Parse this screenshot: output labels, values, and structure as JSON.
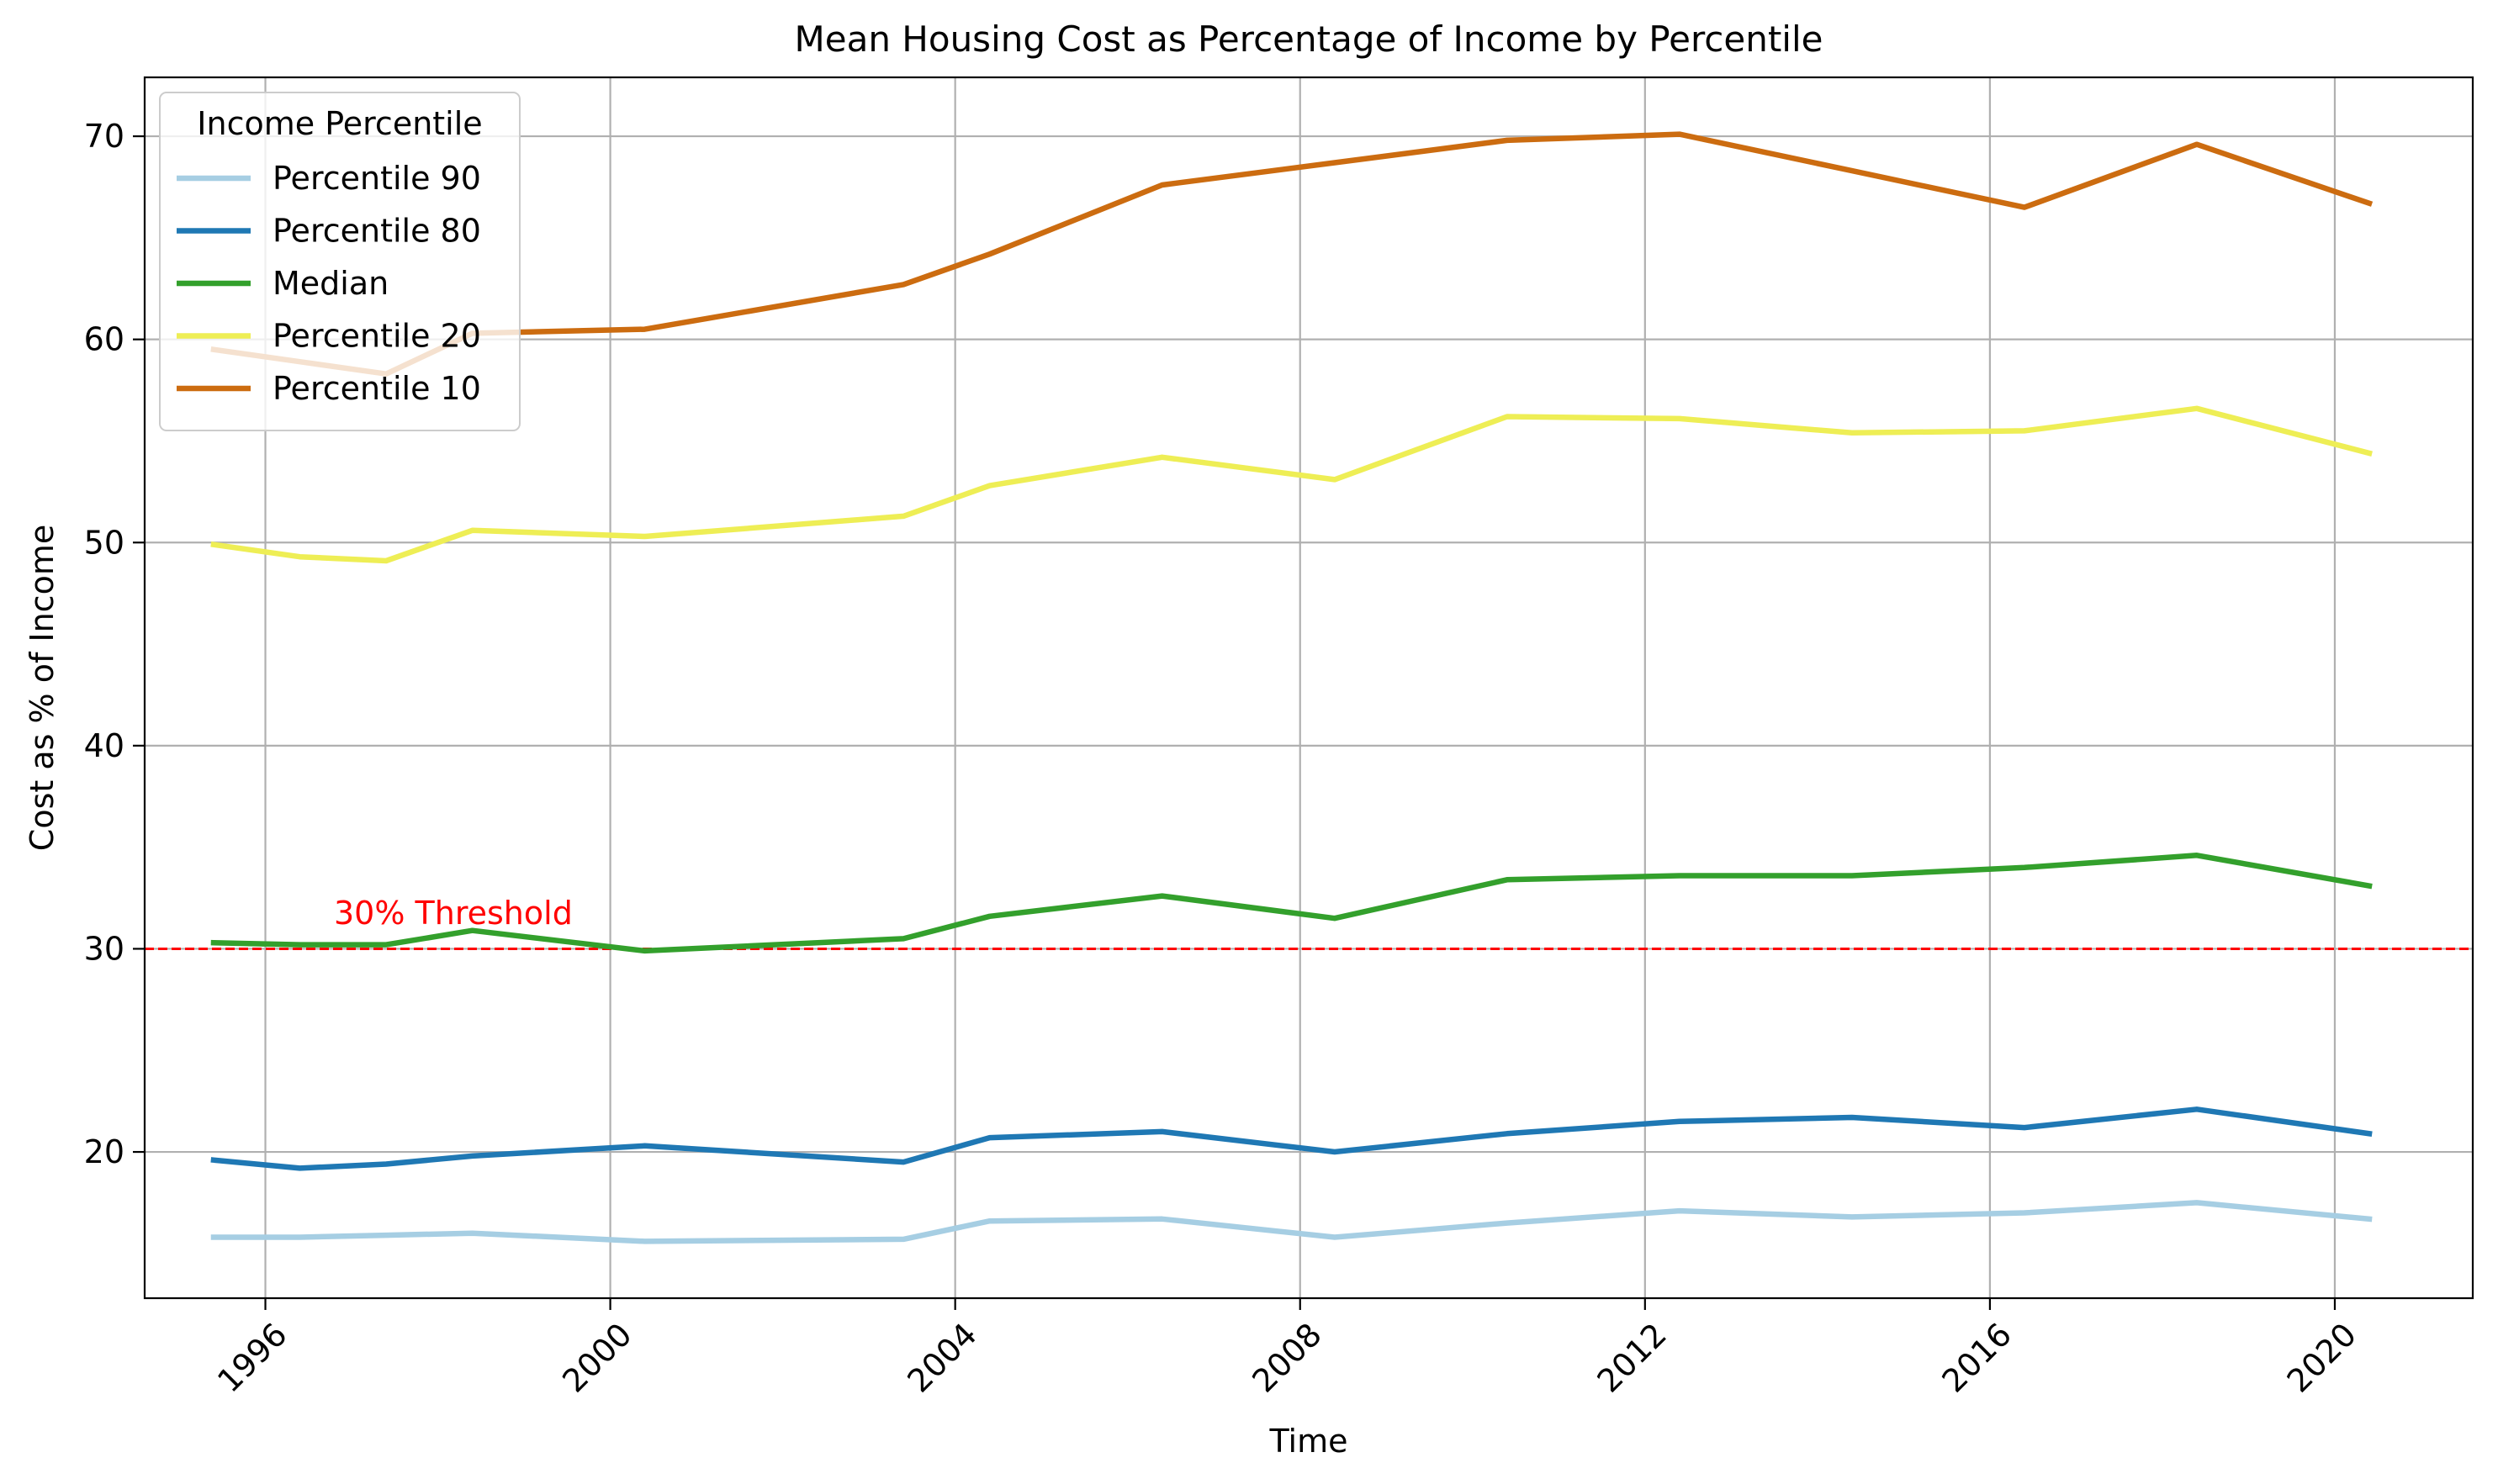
{
  "chart_data": {
    "type": "line",
    "title": "Mean Housing Cost as Percentage of Income by Percentile",
    "xlabel": "Time",
    "ylabel": "Cost as % of Income",
    "xlim": [
      1994.6,
      2021.6
    ],
    "ylim": [
      12.8,
      72.9
    ],
    "xticks": [
      1996,
      2000,
      2004,
      2008,
      2012,
      2016,
      2020
    ],
    "yticks": [
      20,
      30,
      40,
      50,
      60,
      70
    ],
    "grid": true,
    "legend": {
      "title": "Income Percentile",
      "placement": "upper left"
    },
    "x": [
      1995.4,
      1996.4,
      1997.4,
      1998.4,
      2000.4,
      2003.4,
      2004.4,
      2006.4,
      2008.4,
      2010.4,
      2012.4,
      2014.4,
      2016.4,
      2018.4,
      2020.4
    ],
    "series": [
      {
        "name": "Percentile 90",
        "color": "#a6cee3",
        "values": [
          15.8,
          15.8,
          15.9,
          16.0,
          15.6,
          15.7,
          16.6,
          16.7,
          15.8,
          16.5,
          17.1,
          16.8,
          17.0,
          17.5,
          16.7
        ]
      },
      {
        "name": "Percentile 80",
        "color": "#1f78b4",
        "values": [
          19.6,
          19.2,
          19.4,
          19.8,
          20.3,
          19.5,
          20.7,
          21.0,
          20.0,
          20.9,
          21.5,
          21.7,
          21.2,
          22.1,
          20.9
        ]
      },
      {
        "name": "Median",
        "color": "#33a02c",
        "values": [
          30.3,
          30.2,
          30.2,
          30.9,
          29.9,
          30.5,
          31.6,
          32.6,
          31.5,
          33.4,
          33.6,
          33.6,
          34.0,
          34.6,
          33.1
        ]
      },
      {
        "name": "Percentile 20",
        "color": "#eeee55",
        "values": [
          49.9,
          49.3,
          49.1,
          50.6,
          50.3,
          51.3,
          52.8,
          54.2,
          53.1,
          56.2,
          56.1,
          55.4,
          55.5,
          56.6,
          54.4
        ]
      },
      {
        "name": "Percentile 10",
        "color": "#cc6c10",
        "values": [
          59.5,
          58.9,
          58.3,
          60.3,
          60.5,
          62.7,
          64.2,
          67.6,
          68.7,
          69.8,
          70.1,
          68.3,
          66.5,
          69.6,
          66.7
        ]
      }
    ],
    "threshold": {
      "y": 30,
      "label": "30% Threshold",
      "color": "#ff0000"
    }
  }
}
